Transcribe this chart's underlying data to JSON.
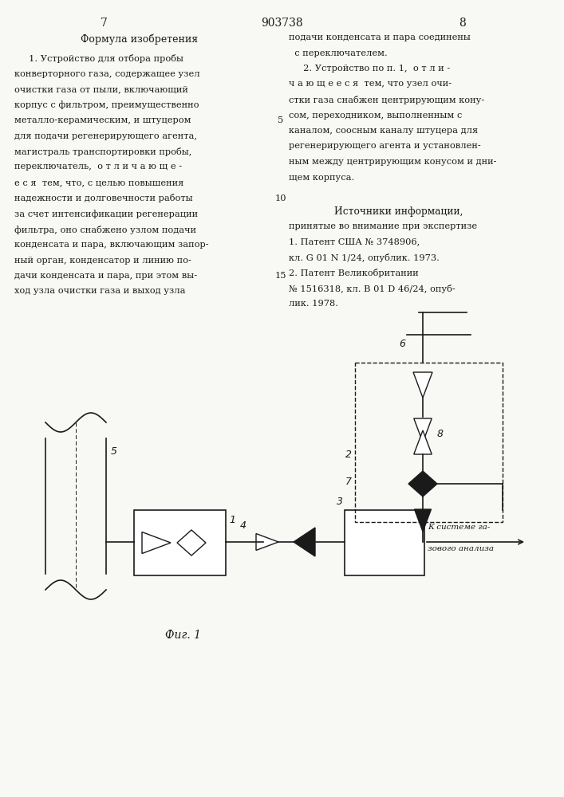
{
  "page_number_left": "7",
  "page_number_center": "903738",
  "page_number_right": "8",
  "left_column_header": "Формула изобретения",
  "left_column_text": [
    "     1. Устройство для отбора пробы",
    "конверторного газа, содержащее узел",
    "очистки газа от пыли, включающий",
    "корпус с фильтром, преимущественно",
    "металло-керамическим, и штуцером",
    "для подачи регенерирующего агента,",
    "магистраль транспортировки пробы,",
    "переключатель,  о т л и ч а ю щ е -",
    "е с я  тем, что, с целью повышения",
    "надежности и долговечности работы",
    "за счет интенсификации регенерации",
    "фильтра, оно снабжено узлом подачи",
    "конденсата и пара, включающим запор-",
    "ный орган, конденсатор и линию по-",
    "дачи конденсата и пара, при этом вы-",
    "ход узла очистки газа и выход узла"
  ],
  "right_col_line_numbers": "5\n10\n15",
  "right_column_text": [
    "подачи конденсата и пара соединены",
    "  с переключателем.",
    "     2. Устройство по п. 1,  о т л и -",
    "ч а ю щ е е с я  тем, что узел очи-",
    "стки газа снабжен центрирующим кону-",
    "сом, переходником, выполненным с",
    "каналом, соосным каналу штуцера для",
    "регенерирующего агента и установлен-",
    "ным между центрирующим конусом и дни-",
    "щем корпуса."
  ],
  "sources_header": "Источники информации,",
  "sources_text": [
    "принятые во внимание при экспертизе",
    "1. Патент США № 3748906,",
    "кл. G 01 N 1/24, опублик. 1973.",
    "2. Патент Великобритании",
    "№ 1516318, кл. B 01 D 46/24, опуб-",
    "лик. 1978."
  ],
  "fig_label": "Фиг. 1",
  "bg_color": "#f8f8f4",
  "line_color": "#1a1a1a"
}
